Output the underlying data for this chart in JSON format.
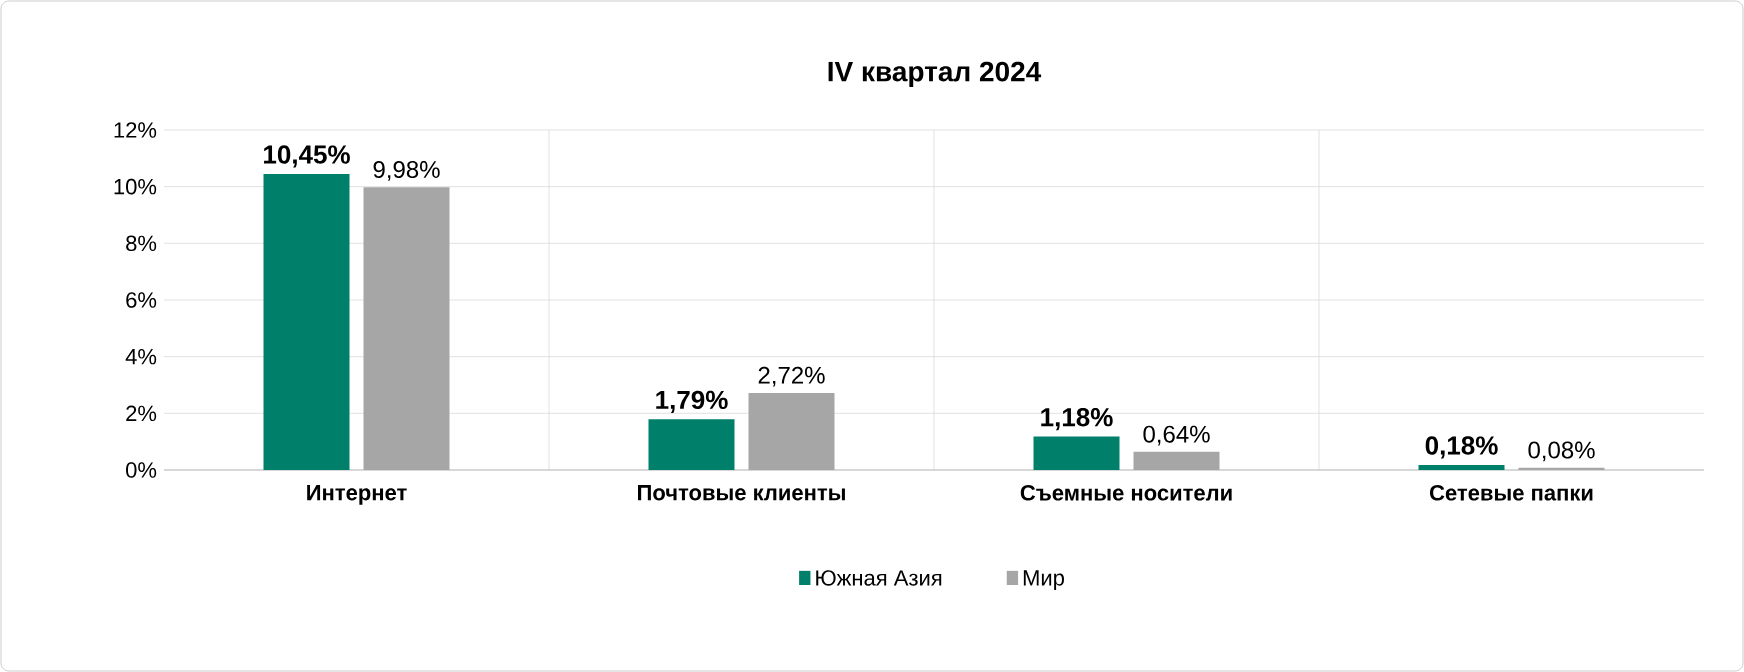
{
  "chart_data": {
    "type": "bar",
    "title": "IV квартал 2024",
    "categories": [
      "Интернет",
      "Почтовые клиенты",
      "Съемные носители",
      "Сетевые папки"
    ],
    "series": [
      {
        "name": "Южная Азия",
        "color": "#007f6a",
        "values": [
          10.45,
          1.79,
          1.18,
          0.18
        ],
        "value_labels": [
          "10,45%",
          "1,79%",
          "1,18%",
          "0,18%"
        ]
      },
      {
        "name": "Мир",
        "color": "#a6a6a6",
        "values": [
          9.98,
          2.72,
          0.64,
          0.08
        ],
        "value_labels": [
          "9,98%",
          "2,72%",
          "0,64%",
          "0,08%"
        ]
      }
    ],
    "ylim": [
      0,
      12
    ],
    "yticks": [
      {
        "value": 0,
        "label": "0%"
      },
      {
        "value": 2,
        "label": "2%"
      },
      {
        "value": 4,
        "label": "4%"
      },
      {
        "value": 6,
        "label": "6%"
      },
      {
        "value": 8,
        "label": "8%"
      },
      {
        "value": 10,
        "label": "10%"
      },
      {
        "value": 12,
        "label": "12%"
      }
    ],
    "grid": true,
    "legend": "bottom"
  }
}
